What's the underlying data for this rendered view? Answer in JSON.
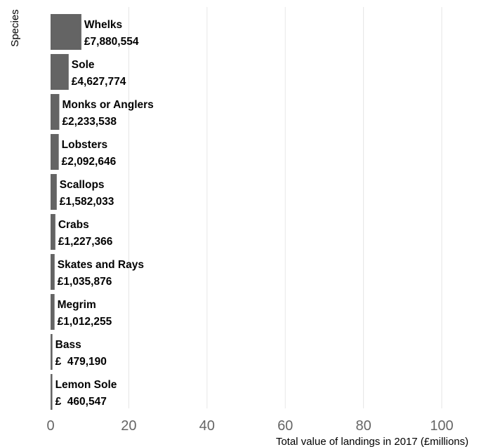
{
  "chart_data": {
    "type": "bar",
    "orientation": "horizontal",
    "xlabel": "Total value of landings in 2017 (£millions)",
    "ylabel": "Species",
    "xlim": [
      0,
      115
    ],
    "xticks": [
      0,
      20,
      40,
      60,
      80,
      100
    ],
    "grid": true,
    "bar_color": "#646464",
    "categories": [
      "Whelks",
      "Sole",
      "Monks or Anglers",
      "Lobsters",
      "Scallops",
      "Crabs",
      "Skates and Rays",
      "Megrim",
      "Bass",
      "Lemon Sole"
    ],
    "values": [
      7.880554,
      4.627774,
      2.233538,
      2.092646,
      1.582033,
      1.227366,
      1.035876,
      1.012255,
      0.47919,
      0.460547
    ],
    "data_labels": [
      "£7,880,554",
      "£4,627,774",
      "£2,233,538",
      "£2,092,646",
      "£1,582,033",
      "£1,227,366",
      "£1,035,876",
      "£1,012,255",
      "£  479,190",
      "£  460,547"
    ]
  }
}
